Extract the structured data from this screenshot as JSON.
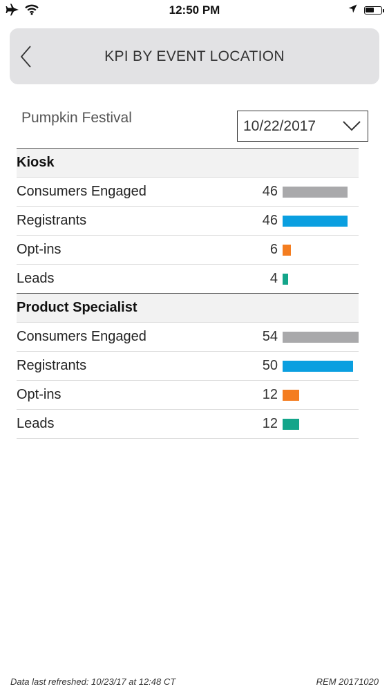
{
  "status_bar": {
    "time": "12:50 PM",
    "left_icons": [
      "airplane-icon",
      "wifi-icon"
    ],
    "right_icons": [
      "location-arrow-icon",
      "battery-icon"
    ]
  },
  "header": {
    "title": "KPI BY EVENT LOCATION",
    "back_icon": "chevron-left-icon"
  },
  "filters": {
    "event_name": "Pumpkin Festival",
    "date_value": "10/22/2017",
    "dropdown_icon": "chevron-down-icon"
  },
  "colors": {
    "consumers_engaged": "#a9a9ab",
    "registrants": "#0a9fe0",
    "opt_ins": "#f47d20",
    "leads": "#13a58a"
  },
  "sections": [
    {
      "title": "Kiosk",
      "rows": [
        {
          "label": "Consumers Engaged",
          "value": "46",
          "num": 46,
          "color": "#a9a9ab"
        },
        {
          "label": "Registrants",
          "value": "46",
          "num": 46,
          "color": "#0a9fe0"
        },
        {
          "label": "Opt-ins",
          "value": "6",
          "num": 6,
          "color": "#f47d20"
        },
        {
          "label": "Leads",
          "value": "4",
          "num": 4,
          "color": "#13a58a"
        }
      ]
    },
    {
      "title": "Product Specialist",
      "rows": [
        {
          "label": "Consumers Engaged",
          "value": "54",
          "num": 54,
          "color": "#a9a9ab"
        },
        {
          "label": "Registrants",
          "value": "50",
          "num": 50,
          "color": "#0a9fe0"
        },
        {
          "label": "Opt-ins",
          "value": "12",
          "num": 12,
          "color": "#f47d20"
        },
        {
          "label": "Leads",
          "value": "12",
          "num": 12,
          "color": "#13a58a"
        }
      ]
    }
  ],
  "footer": {
    "refreshed": "Data last refreshed: 10/23/17 at 12:48 CT",
    "version": "REM 20171020"
  }
}
